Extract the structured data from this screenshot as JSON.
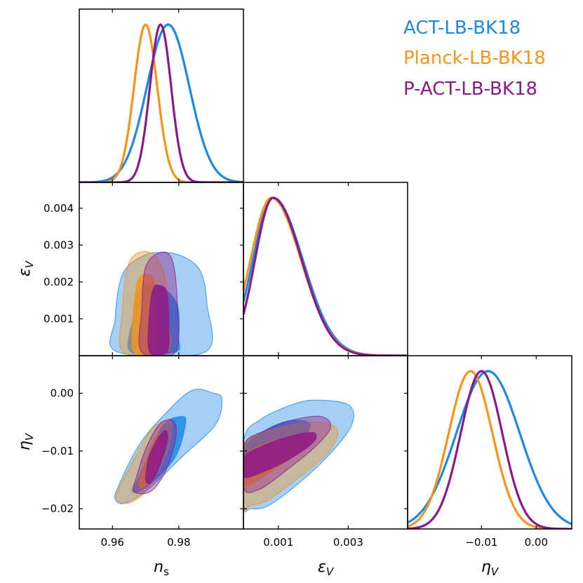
{
  "chart_data": {
    "type": "triangle-plot",
    "parameters": [
      {
        "key": "ns",
        "label": "n",
        "label_sub": "s",
        "range": [
          0.95,
          0.9995
        ],
        "ticks": [
          0.96,
          0.98
        ],
        "tick_labels": [
          "0.96",
          "0.98"
        ]
      },
      {
        "key": "epsV",
        "label": "ε",
        "label_sub": "V",
        "range": [
          0.0,
          0.0047
        ],
        "ticks": [
          0.001,
          0.003
        ],
        "tick_labels": [
          "0.001",
          "0.003"
        ],
        "y_ticks": [
          0.001,
          0.002,
          0.003,
          0.004
        ],
        "y_tick_labels": [
          "0.001",
          "0.002",
          "0.003",
          "0.004"
        ]
      },
      {
        "key": "etaV",
        "label": "η",
        "label_sub": "V",
        "range": [
          -0.0235,
          0.0065
        ],
        "ticks": [
          -0.01,
          0.0
        ],
        "tick_labels": [
          "−0.01",
          "0.00"
        ],
        "y_ticks": [
          -0.02,
          -0.01,
          0.0
        ],
        "y_tick_labels": [
          "−0.02",
          "−0.01",
          "0.00"
        ]
      }
    ],
    "series": [
      {
        "name": "ACT-LB-BK18",
        "color": "#1e88e5",
        "ns": {
          "mean": 0.9768,
          "sd": 0.0064
        },
        "epsV": {
          "peak": 0.00085,
          "sd_left": 0.00058,
          "sd_right": 0.00085
        },
        "etaV": {
          "mean": -0.0088,
          "sd": 0.0058
        },
        "contours": {
          "ns_eps_68": [
            [
              0.9655,
              0.0001
            ],
            [
              0.9662,
              0.001
            ],
            [
              0.968,
              0.0018
            ],
            [
              0.974,
              0.0019
            ],
            [
              0.9795,
              0.0014
            ],
            [
              0.98,
              0.0005
            ],
            [
              0.979,
              0.0001
            ]
          ],
          "ns_eps_95": [
            [
              0.9615,
              0.0001
            ],
            [
              0.9608,
              0.001
            ],
            [
              0.963,
              0.0022
            ],
            [
              0.969,
              0.0027
            ],
            [
              0.975,
              0.0028
            ],
            [
              0.981,
              0.0027
            ],
            [
              0.9865,
              0.0023
            ],
            [
              0.9885,
              0.0014
            ],
            [
              0.988,
              0.0001
            ]
          ],
          "ns_eta_68": [
            [
              0.966,
              -0.0165
            ],
            [
              0.968,
              -0.0145
            ],
            [
              0.975,
              -0.0058
            ],
            [
              0.981,
              -0.004
            ],
            [
              0.982,
              -0.0055
            ],
            [
              0.979,
              -0.011
            ],
            [
              0.972,
              -0.0155
            ],
            [
              0.967,
              -0.0172
            ]
          ],
          "ns_eta_95": [
            [
              0.961,
              -0.0185
            ],
            [
              0.9615,
              -0.0165
            ],
            [
              0.968,
              -0.009
            ],
            [
              0.976,
              -0.0035
            ],
            [
              0.984,
              0.0005
            ],
            [
              0.9905,
              0.0
            ],
            [
              0.993,
              -0.001
            ],
            [
              0.991,
              -0.0055
            ],
            [
              0.981,
              -0.011
            ],
            [
              0.971,
              -0.0165
            ],
            [
              0.964,
              -0.019
            ]
          ],
          "eps_eta_68": [
            [
              1e-05,
              -0.015
            ],
            [
              1e-05,
              -0.0095
            ],
            [
              0.0006,
              -0.0065
            ],
            [
              0.0013,
              -0.0048
            ],
            [
              0.0019,
              -0.0052
            ],
            [
              0.0017,
              -0.0078
            ],
            [
              0.001,
              -0.0112
            ],
            [
              0.0004,
              -0.0135
            ]
          ],
          "eps_eta_95": [
            [
              1e-05,
              -0.0195
            ],
            [
              1e-05,
              -0.008
            ],
            [
              0.0005,
              -0.0045
            ],
            [
              0.0013,
              -0.0022
            ],
            [
              0.002,
              -0.0012
            ],
            [
              0.003,
              -0.002
            ],
            [
              0.0031,
              -0.0055
            ],
            [
              0.0024,
              -0.011
            ],
            [
              0.0015,
              -0.016
            ],
            [
              0.0007,
              -0.0195
            ],
            [
              0.0002,
              -0.02
            ]
          ]
        }
      },
      {
        "name": "Planck-LB-BK18",
        "color": "#f7941d",
        "ns": {
          "mean": 0.97,
          "sd": 0.0035
        },
        "epsV": {
          "peak": 0.0008,
          "sd_left": 0.0006,
          "sd_right": 0.00085
        },
        "etaV": {
          "mean": -0.012,
          "sd": 0.004
        },
        "contours": {
          "ns_eps_68": [
            [
              0.9665,
              0.0001
            ],
            [
              0.9662,
              0.001
            ],
            [
              0.9675,
              0.002
            ],
            [
              0.97,
              0.0022
            ],
            [
              0.9725,
              0.002
            ],
            [
              0.9735,
              0.001
            ],
            [
              0.973,
              0.0001
            ]
          ],
          "ns_eta_68": [
            [
              0.968,
              -0.016
            ],
            [
              0.969,
              -0.0135
            ],
            [
              0.9715,
              -0.0095
            ],
            [
              0.974,
              -0.007
            ],
            [
              0.975,
              -0.0085
            ],
            [
              0.973,
              -0.013
            ],
            [
              0.97,
              -0.016
            ]
          ],
          "ns_eps_95": [
            [
              0.9632,
              0.0001
            ],
            [
              0.963,
              0.0012
            ],
            [
              0.9645,
              0.0024
            ],
            [
              0.968,
              0.0028
            ],
            [
              0.973,
              0.0027
            ],
            [
              0.9762,
              0.002
            ],
            [
              0.9768,
              0.001
            ],
            [
              0.9765,
              0.0001
            ]
          ],
          "ns_eta_95": [
            [
              0.9615,
              -0.0185
            ],
            [
              0.9615,
              -0.017
            ],
            [
              0.966,
              -0.012
            ],
            [
              0.9715,
              -0.0065
            ],
            [
              0.976,
              -0.0048
            ],
            [
              0.978,
              -0.006
            ],
            [
              0.9755,
              -0.0115
            ],
            [
              0.97,
              -0.017
            ],
            [
              0.965,
              -0.019
            ]
          ],
          "eps_eta_68": [
            [
              1e-05,
              -0.016
            ],
            [
              1e-05,
              -0.011
            ],
            [
              0.0006,
              -0.0088
            ],
            [
              0.0014,
              -0.0075
            ],
            [
              0.0019,
              -0.008
            ],
            [
              0.0015,
              -0.0105
            ],
            [
              0.0008,
              -0.0135
            ],
            [
              0.0003,
              -0.0155
            ]
          ],
          "eps_eta_95": [
            [
              1e-05,
              -0.0195
            ],
            [
              1e-05,
              -0.0095
            ],
            [
              0.0005,
              -0.007
            ],
            [
              0.0014,
              -0.0055
            ],
            [
              0.0022,
              -0.005
            ],
            [
              0.0027,
              -0.0065
            ],
            [
              0.0024,
              -0.0105
            ],
            [
              0.0015,
              -0.015
            ],
            [
              0.0007,
              -0.0185
            ],
            [
              0.0002,
              -0.0195
            ]
          ]
        }
      },
      {
        "name": "P-ACT-LB-BK18",
        "color": "#8b1a89",
        "ns": {
          "mean": 0.9745,
          "sd": 0.0032
        },
        "epsV": {
          "peak": 0.00085,
          "sd_left": 0.00052,
          "sd_right": 0.00082
        },
        "etaV": {
          "mean": -0.01,
          "sd": 0.0038
        },
        "contours": {
          "ns_eps_68": [
            [
              0.9712,
              0.0001
            ],
            [
              0.971,
              0.001
            ],
            [
              0.9722,
              0.0018
            ],
            [
              0.9745,
              0.0019
            ],
            [
              0.9765,
              0.0017
            ],
            [
              0.977,
              0.0008
            ],
            [
              0.9765,
              0.0001
            ]
          ],
          "ns_eps_95": [
            [
              0.9688,
              0.0001
            ],
            [
              0.9688,
              0.0012
            ],
            [
              0.97,
              0.0024
            ],
            [
              0.9745,
              0.0028
            ],
            [
              0.978,
              0.0026
            ],
            [
              0.9795,
              0.0015
            ],
            [
              0.979,
              0.0001
            ]
          ],
          "ns_eta_68": [
            [
              0.97,
              -0.015
            ],
            [
              0.971,
              -0.011
            ],
            [
              0.974,
              -0.0075
            ],
            [
              0.9762,
              -0.0065
            ],
            [
              0.9765,
              -0.0085
            ],
            [
              0.974,
              -0.013
            ],
            [
              0.9715,
              -0.0155
            ]
          ],
          "ns_eta_95": [
            [
              0.9665,
              -0.017
            ],
            [
              0.9675,
              -0.014
            ],
            [
              0.9705,
              -0.009
            ],
            [
              0.9745,
              -0.0052
            ],
            [
              0.9785,
              -0.0048
            ],
            [
              0.979,
              -0.008
            ],
            [
              0.976,
              -0.0135
            ],
            [
              0.9715,
              -0.017
            ]
          ],
          "eps_eta_68": [
            [
              1e-05,
              -0.0145
            ],
            [
              1e-05,
              -0.011
            ],
            [
              0.0006,
              -0.009
            ],
            [
              0.0013,
              -0.0075
            ],
            [
              0.002,
              -0.0068
            ],
            [
              0.002,
              -0.0085
            ],
            [
              0.0013,
              -0.0115
            ],
            [
              0.0006,
              -0.0135
            ]
          ],
          "eps_eta_95": [
            [
              1e-05,
              -0.0165
            ],
            [
              1e-05,
              -0.009
            ],
            [
              0.0006,
              -0.0065
            ],
            [
              0.0013,
              -0.0048
            ],
            [
              0.0022,
              -0.004
            ],
            [
              0.0025,
              -0.0058
            ],
            [
              0.0021,
              -0.009
            ],
            [
              0.0013,
              -0.013
            ],
            [
              0.0005,
              -0.0165
            ]
          ]
        }
      }
    ],
    "legend": {
      "entries": [
        "ACT-LB-BK18",
        "Planck-LB-BK18",
        "P-ACT-LB-BK18"
      ],
      "placement": "top-right"
    }
  }
}
